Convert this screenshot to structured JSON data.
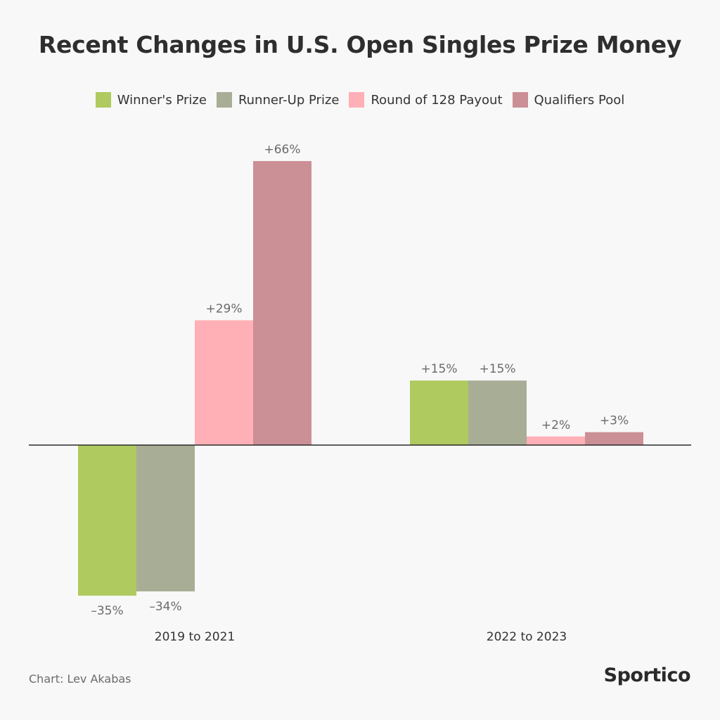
{
  "chart_data": {
    "type": "bar",
    "title": "Recent Changes in U.S. Open Singles Prize Money",
    "categories": [
      "2019 to 2021",
      "2022 to 2023"
    ],
    "series": [
      {
        "name": "Winner's Prize",
        "color": "#afca5f",
        "values": [
          -35,
          15
        ],
        "labels": [
          "–35%",
          "+15%"
        ]
      },
      {
        "name": "Runner-Up Prize",
        "color": "#a8ad96",
        "values": [
          -34,
          15
        ],
        "labels": [
          "–34%",
          "+15%"
        ]
      },
      {
        "name": "Round of 128 Payout",
        "color": "#ffb0b6",
        "values": [
          29,
          2
        ],
        "labels": [
          "+29%",
          "+2%"
        ]
      },
      {
        "name": "Qualifiers Pool",
        "color": "#cb8f96",
        "values": [
          66,
          3
        ],
        "labels": [
          "+66%",
          "+3%"
        ]
      }
    ],
    "ylim": [
      -35,
      66
    ],
    "grid": false,
    "legend_position": "top-center"
  },
  "footer": {
    "credit": "Chart: Lev Akabas",
    "brand": "Sportico"
  }
}
